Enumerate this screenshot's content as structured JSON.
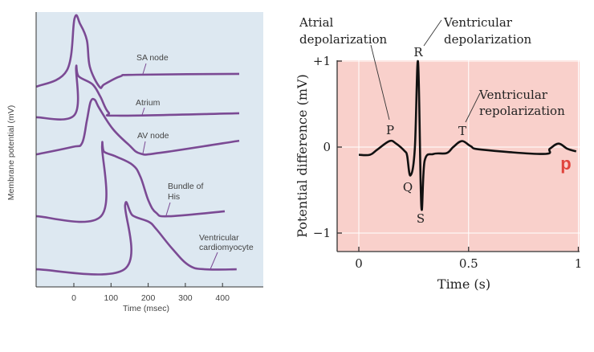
{
  "chart_data": [
    {
      "type": "line",
      "xlabel": "Time (msec)",
      "ylabel": "Membrane potential (mV)",
      "xlim": [
        -100,
        510
      ],
      "x_ticks": [
        "0",
        "100",
        "200",
        "300",
        "400"
      ],
      "x_tick_values": [
        0,
        100,
        200,
        300,
        400
      ],
      "y_ticks": [],
      "grid": false,
      "background": "#dde8f1",
      "line_color": "#7b4a94",
      "series": [
        {
          "name": "SA node",
          "x": [
            -101,
            -19,
            2,
            17,
            35,
            43,
            69,
            82,
            125,
            168,
            445
          ],
          "y": [
            72.8,
            78.7,
            97.7,
            95.6,
            89.8,
            80.1,
            72.8,
            73.7,
            76.6,
            77.2,
            77.5
          ]
        },
        {
          "name": "Atrium",
          "x": [
            -101,
            2,
            6,
            13,
            50,
            71,
            93,
            125,
            445
          ],
          "y": [
            61.7,
            62.6,
            79.8,
            76.6,
            73.7,
            69.3,
            63.5,
            62.3,
            63.2
          ]
        },
        {
          "name": "AV node",
          "x": [
            -101,
            -4,
            22,
            35,
            45,
            56,
            69,
            104,
            147,
            179,
            233,
            445
          ],
          "y": [
            48.2,
            50.9,
            52.3,
            60.5,
            67.3,
            68.1,
            64.9,
            57.6,
            51.8,
            48.5,
            48.8,
            53.2
          ]
        },
        {
          "name": "Bundle of His",
          "x": [
            -101,
            73,
            76,
            82,
            114,
            158,
            179,
            201,
            222,
            255,
            406
          ],
          "y": [
            25.7,
            25.7,
            51.2,
            49.1,
            47.4,
            44.4,
            40.1,
            31.3,
            26.9,
            25.7,
            27.5
          ]
        },
        {
          "name": "Ventricular cardiomyocyte",
          "x": [
            -101,
            136,
            138,
            158,
            201,
            222,
            266,
            309,
            352,
            438
          ],
          "y": [
            6.4,
            6.4,
            29.8,
            26,
            23.7,
            21,
            13.7,
            7.9,
            6.4,
            6.4
          ]
        }
      ],
      "labels": {
        "sa": "SA node",
        "atrium": "Atrium",
        "av": "AV node",
        "his_1": "Bundle of",
        "his_2": "His",
        "vent_1": "Ventricular",
        "vent_2": "cardiomyocyte"
      }
    },
    {
      "type": "line",
      "xlabel": "Time (s)",
      "ylabel": "Potential difference (mV)",
      "xlim": [
        -0.1,
        1
      ],
      "ylim": [
        -1.2,
        1
      ],
      "x_ticks": [
        "0",
        "0.5",
        "1"
      ],
      "x_tick_values": [
        0,
        0.5,
        1
      ],
      "y_ticks": [
        "+1",
        "0",
        "−1"
      ],
      "y_tick_values": [
        1,
        0,
        -1
      ],
      "grid": true,
      "background": "#f9d0cb",
      "line_color": "#111111",
      "series": [
        {
          "x": [
            0,
            0.05,
            0.084,
            0.14,
            0.17,
            0.21,
            0.22,
            0.235,
            0.255,
            0.27,
            0.285,
            0.3,
            0.34,
            0.4,
            0.43,
            0.47,
            0.51,
            0.56,
            0.84,
            0.87,
            0.91,
            0.95,
            0.99
          ],
          "y": [
            -0.09,
            -0.09,
            -0.03,
            0.07,
            0.04,
            -0.05,
            -0.1,
            -0.33,
            -0.03,
            0.99,
            -0.69,
            -0.16,
            -0.08,
            -0.07,
            0.0,
            0.07,
            0.01,
            -0.03,
            -0.08,
            -0.02,
            0.04,
            -0.02,
            -0.05
          ]
        }
      ],
      "wave_labels": {
        "P": "P",
        "Q": "Q",
        "R": "R",
        "S": "S",
        "T": "T"
      },
      "annotations": {
        "atrial_1": "Atrial",
        "atrial_2": "depolarization",
        "vdep_1": "Ventricular",
        "vdep_2": "depolarization",
        "vrep_1": "Ventricular",
        "vrep_2": "repolarization"
      },
      "watermark": "p",
      "watermark_color": "#e0443c"
    }
  ]
}
